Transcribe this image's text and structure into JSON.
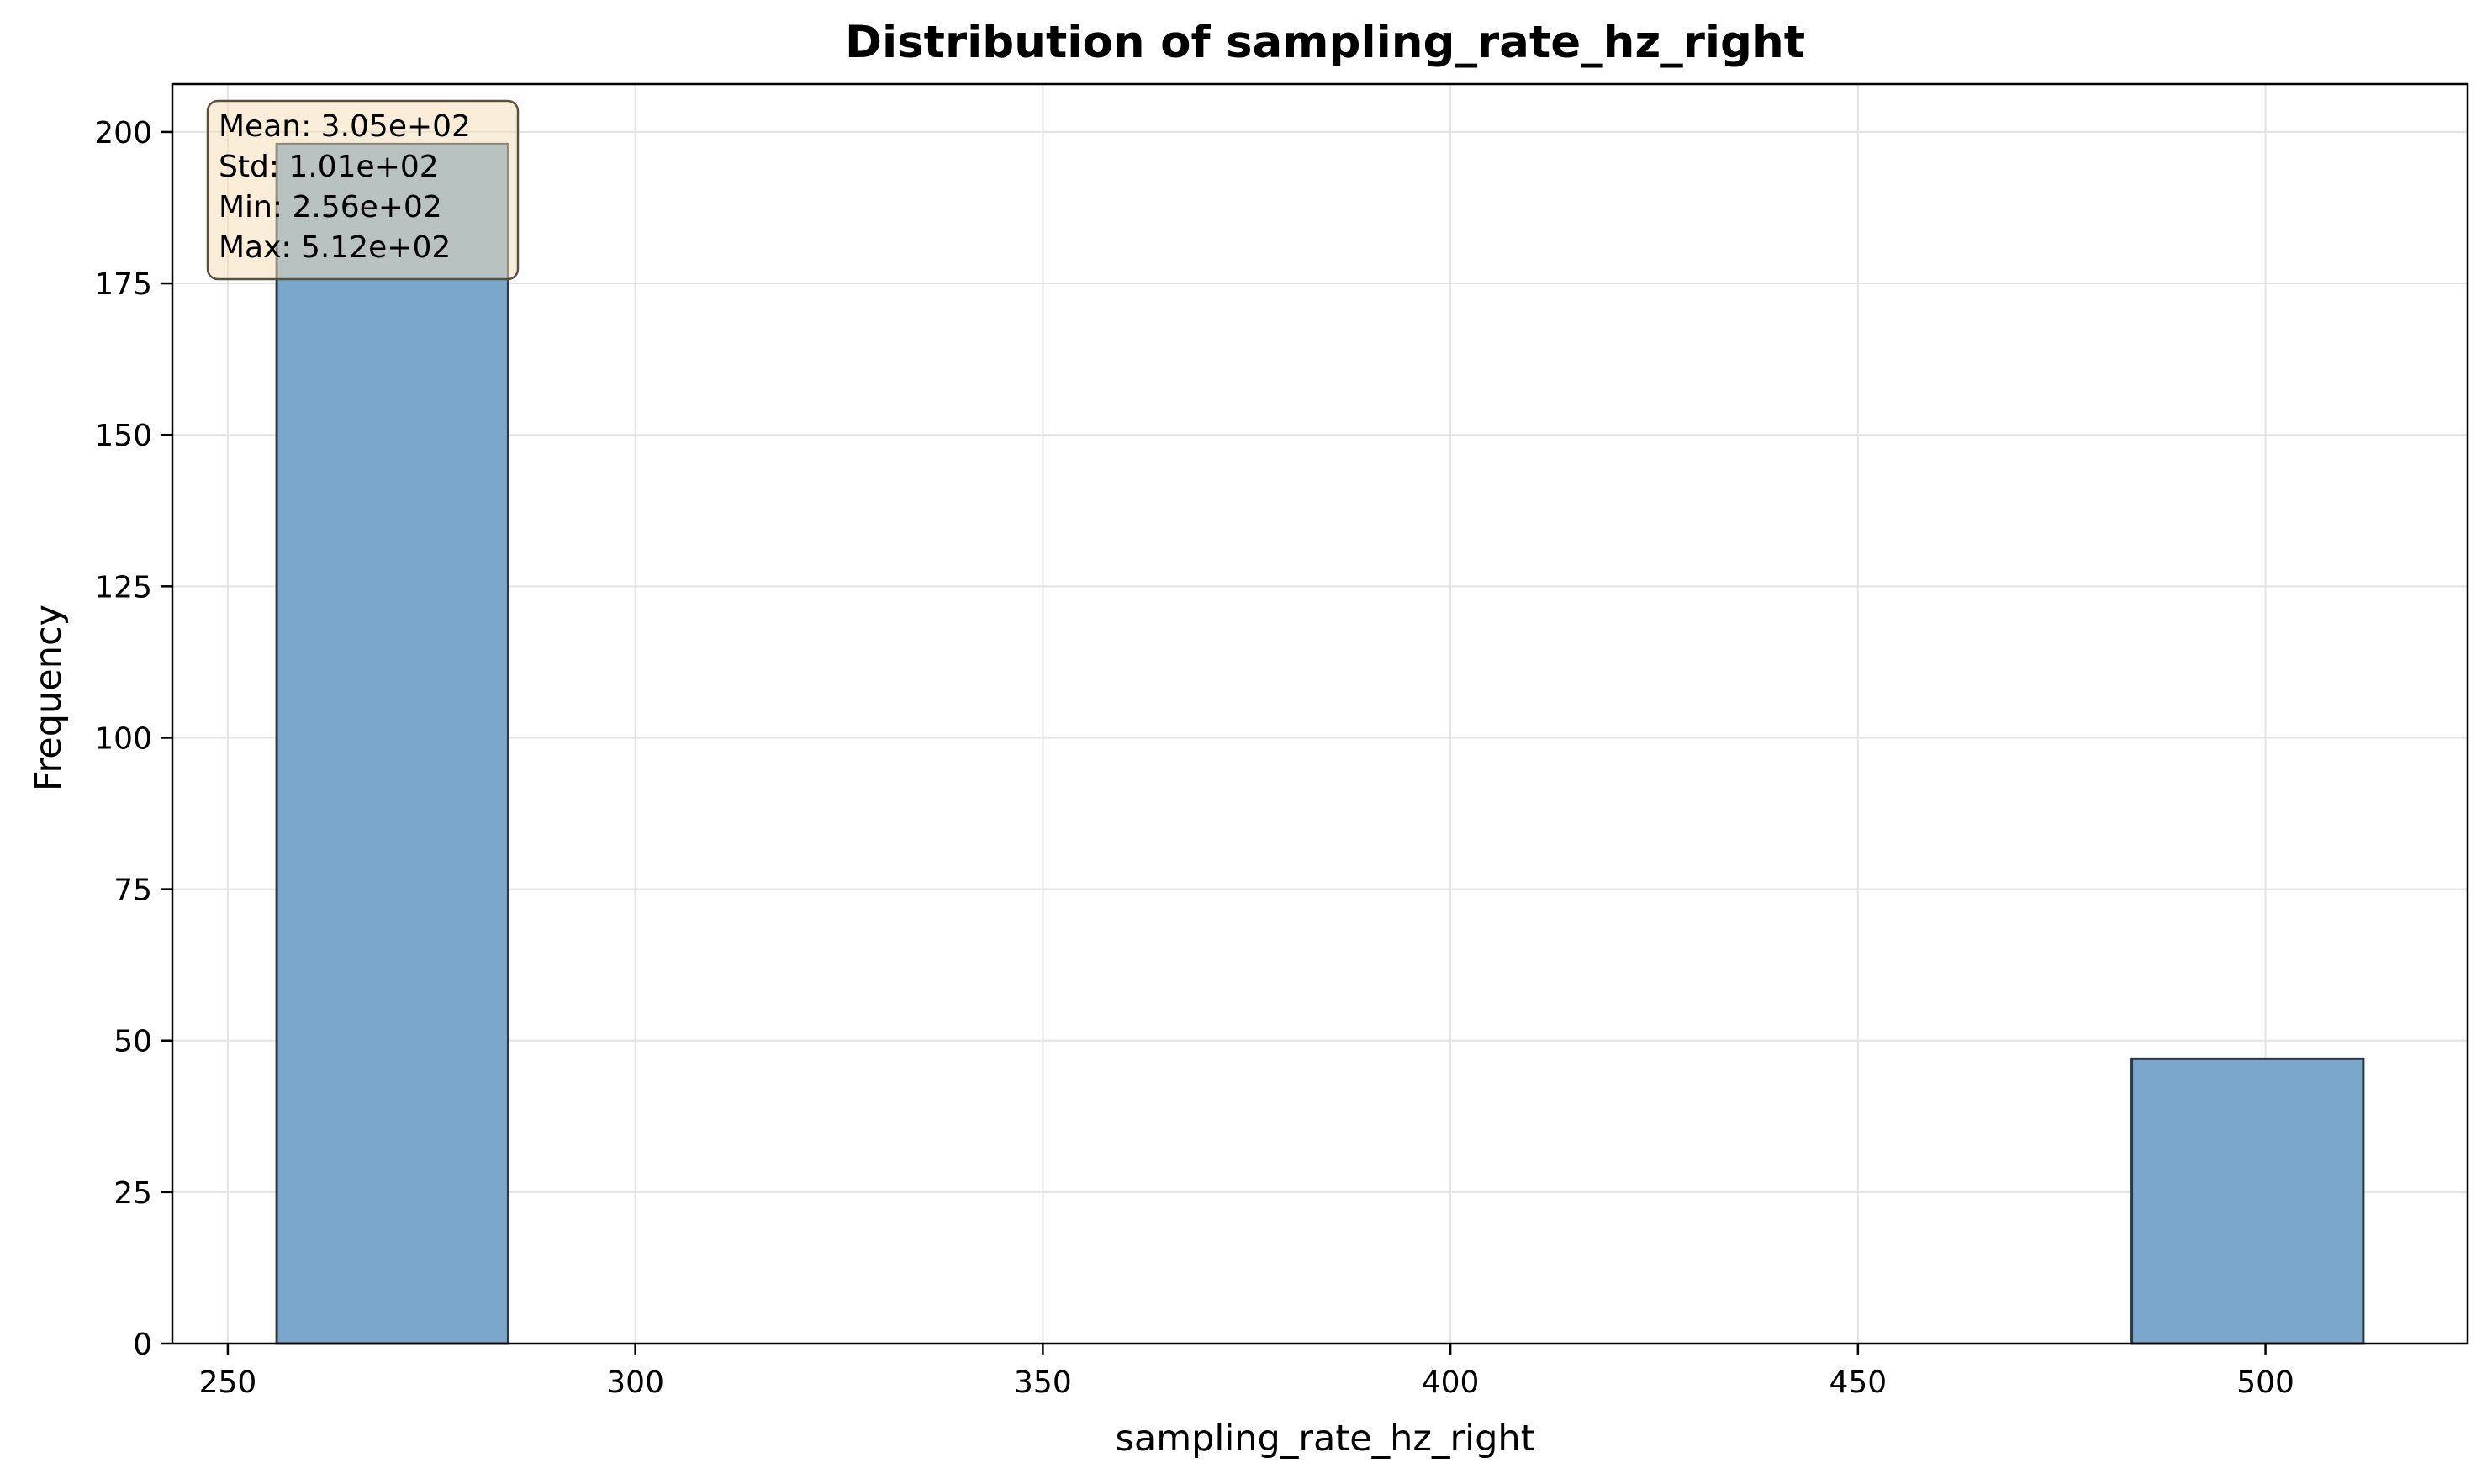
{
  "chart_data": {
    "type": "bar",
    "title": "Distribution of sampling_rate_hz_right",
    "xlabel": "sampling_rate_hz_right",
    "ylabel": "Frequency",
    "xlim": [
      243.2,
      524.8
    ],
    "ylim": [
      0,
      207.9
    ],
    "xticks": [
      250,
      300,
      350,
      400,
      450,
      500
    ],
    "yticks": [
      0,
      25,
      50,
      75,
      100,
      125,
      150,
      175,
      200
    ],
    "grid": true,
    "bins": [
      {
        "x0": 256.0,
        "x1": 284.4,
        "count": 198
      },
      {
        "x0": 284.4,
        "x1": 312.9,
        "count": 0
      },
      {
        "x0": 312.9,
        "x1": 341.3,
        "count": 0
      },
      {
        "x0": 341.3,
        "x1": 369.8,
        "count": 0
      },
      {
        "x0": 369.8,
        "x1": 398.2,
        "count": 0
      },
      {
        "x0": 398.2,
        "x1": 426.7,
        "count": 0
      },
      {
        "x0": 426.7,
        "x1": 455.1,
        "count": 0
      },
      {
        "x0": 455.1,
        "x1": 483.6,
        "count": 0
      },
      {
        "x0": 483.6,
        "x1": 512.0,
        "count": 47
      }
    ],
    "stats_box": {
      "lines": [
        "Mean: 3.05e+02",
        "Std: 1.01e+02",
        "Min: 2.56e+02",
        "Max: 5.12e+02"
      ],
      "placement": "top-left"
    },
    "colors": {
      "bar_fill": "#7ba7cc",
      "bar_edge": "#2b3a44",
      "grid": "#e3e3e3",
      "stats_box_fill": "#f5deb3",
      "stats_box_edge": "#5a5040"
    }
  }
}
